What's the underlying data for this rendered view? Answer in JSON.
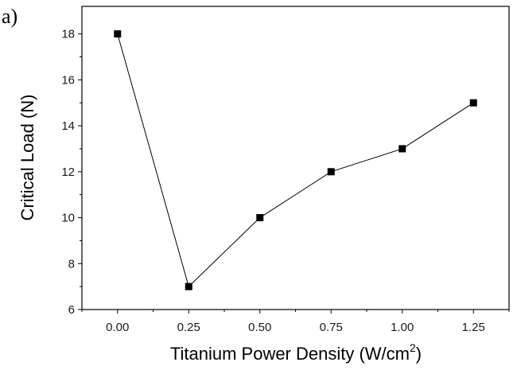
{
  "panel_label": "a)",
  "chart_data": {
    "type": "line",
    "title": "",
    "xlabel": "Titanium Power Density (W/cm",
    "xlabel_superscript": "2",
    "xlabel_suffix": ")",
    "ylabel": "Critical Load (N)",
    "x": [
      0.0,
      0.25,
      0.5,
      0.75,
      1.0,
      1.25
    ],
    "series": [
      {
        "values": [
          18,
          7,
          10,
          12,
          13,
          15
        ]
      }
    ],
    "xlim": [
      -0.125,
      1.375
    ],
    "ylim": [
      6,
      19.2
    ],
    "xticks": [
      "0.00",
      "0.25",
      "0.50",
      "0.75",
      "1.00",
      "1.25"
    ],
    "yticks": [
      "6",
      "8",
      "10",
      "12",
      "14",
      "16",
      "18"
    ],
    "marker": "square",
    "line_color": "#000000",
    "grid": false,
    "legend": "none"
  }
}
